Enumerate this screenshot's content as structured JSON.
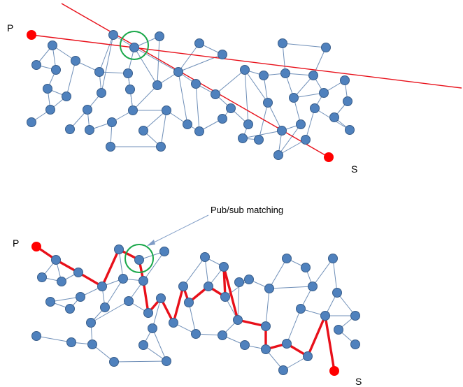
{
  "top": {
    "publisher_label": "P",
    "subscriber_label": "S"
  },
  "bottom": {
    "publisher_label": "P",
    "subscriber_label": "S",
    "annotation": "Pub/sub matching"
  },
  "colors": {
    "node_fill": "#4f81bd",
    "node_stroke": "#385d8a",
    "edge": "#6f8fb8",
    "route": "#e8101a",
    "endpoint": "#ff0000",
    "match_circle": "#1aa84a",
    "arrow": "#7f9cc6"
  }
}
